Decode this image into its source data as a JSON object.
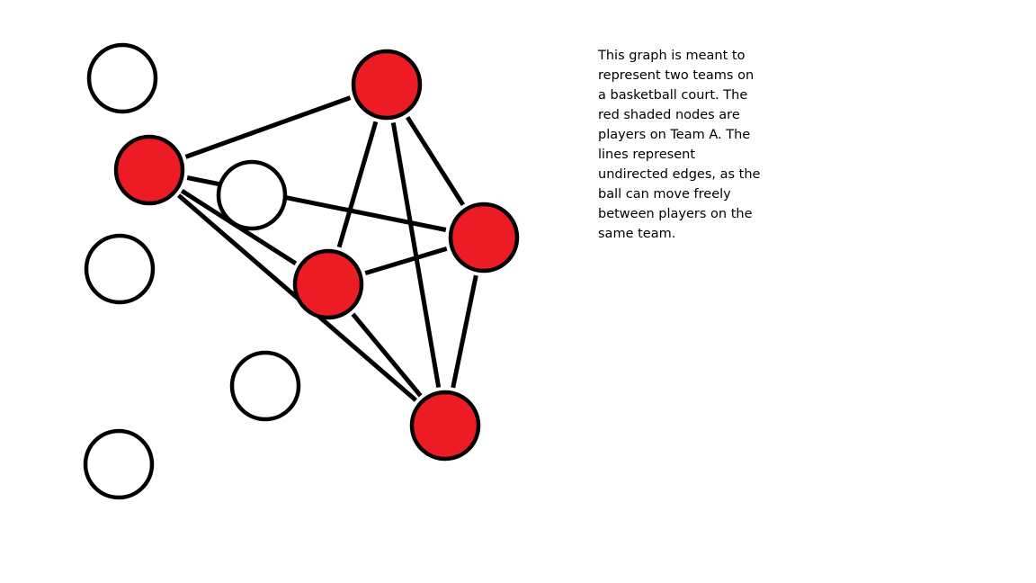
{
  "caption": "This graph is meant to\nrepresent two teams on\na basketball court. The\nred shaded nodes are\nplayers on Team A. The\nlines represent\nundirected edges, as the\nball can move freely\nbetween players on the\nsame team.",
  "colors": {
    "team_a_fill": "#ed1c24",
    "other_team_fill": "#ffffff",
    "stroke": "#000000",
    "background": "#ffffff"
  },
  "team_a_nodes": [
    "a1",
    "a2",
    "a3",
    "a4",
    "a5"
  ],
  "other_team_nodes": [
    "b1",
    "b2",
    "b3",
    "b4",
    "b5"
  ],
  "edges": [
    [
      "a1",
      "a2"
    ],
    [
      "a2",
      "a3"
    ],
    [
      "a1",
      "a4"
    ],
    [
      "a1",
      "a5"
    ],
    [
      "a1",
      "a3"
    ],
    [
      "a2",
      "a4"
    ],
    [
      "a2",
      "a5"
    ],
    [
      "a3",
      "a4"
    ],
    [
      "a3",
      "a5"
    ],
    [
      "a4",
      "a5"
    ]
  ]
}
